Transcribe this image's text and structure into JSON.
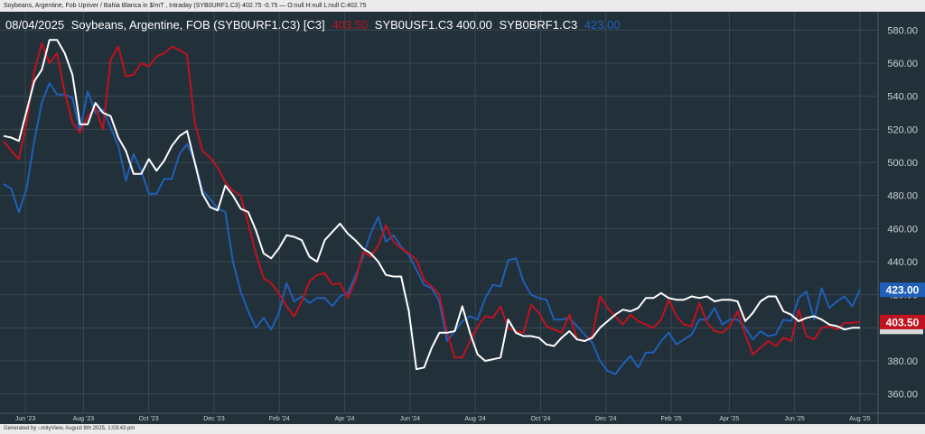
{
  "header": {
    "title": "Soybeans, Argentine, Fob Upriver / Bahia Blanca in $/mT , Intraday (SYB0URF1.C3) 402.75 -0.75 — O:null H:null L:null C:402.75"
  },
  "footer": {
    "text": "Generated by ⌂mityView, August 8th 2025, 1:03:43 pm"
  },
  "legend": {
    "date": "08/04/2025",
    "name": "Soybeans, Argentine, FOB (SYB0URF1.C3) [C3]",
    "series": [
      {
        "label": "403.50",
        "color": "#c0121f"
      },
      {
        "label": "SYB0USF1.C3 400.00",
        "color": "#ffffff"
      },
      {
        "label": "SYB0BRF1.C3",
        "color": "#ffffff"
      },
      {
        "label": "423.00",
        "color": "#1f5fb8"
      }
    ]
  },
  "chart_data": {
    "type": "line",
    "title": "",
    "xlabel": "",
    "ylabel": "",
    "ylim": [
      350,
      590
    ],
    "y_ticks": [
      360,
      380,
      400,
      420,
      440,
      460,
      480,
      500,
      520,
      540,
      560,
      580
    ],
    "y_tick_labels": [
      "360.00",
      "380.00",
      "400.00",
      "420.00",
      "440.00",
      "460.00",
      "480.00",
      "500.00",
      "520.00",
      "540.00",
      "560.00",
      "580.00"
    ],
    "x_ticks": [
      {
        "label": "Jun '23",
        "t": 3
      },
      {
        "label": "Aug '23",
        "t": 11
      },
      {
        "label": "Oct '23",
        "t": 20
      },
      {
        "label": "Dec '23",
        "t": 29
      },
      {
        "label": "Feb '24",
        "t": 38
      },
      {
        "label": "Apr '24",
        "t": 47
      },
      {
        "label": "Jun '24",
        "t": 56
      },
      {
        "label": "Aug '24",
        "t": 65
      },
      {
        "label": "Oct '24",
        "t": 74
      },
      {
        "label": "Dec '24",
        "t": 83
      },
      {
        "label": "Feb '25",
        "t": 92
      },
      {
        "label": "Apr '25",
        "t": 100
      },
      {
        "label": "Jun '25",
        "t": 109
      },
      {
        "label": "Aug '25",
        "t": 118
      }
    ],
    "t_range": [
      0,
      120
    ],
    "series": [
      {
        "name": "SYB0URF1.C3",
        "color": "#c0121f",
        "last_value": "403.50",
        "values": [
          513,
          507,
          502,
          524,
          555,
          572,
          560,
          566,
          542,
          524,
          518,
          528,
          533,
          520,
          562,
          570,
          552,
          553,
          560,
          558,
          564,
          566,
          570,
          568,
          565,
          524,
          507,
          503,
          497,
          488,
          483,
          480,
          463,
          445,
          430,
          427,
          421,
          413,
          407,
          416,
          428,
          432,
          433,
          426,
          427,
          418,
          428,
          446,
          443,
          450,
          462,
          452,
          448,
          445,
          441,
          429,
          425,
          420,
          397,
          382,
          382,
          392,
          401,
          407,
          406,
          413,
          400,
          398,
          397,
          414,
          409,
          401,
          399,
          397,
          408,
          393,
          392,
          395,
          419,
          412,
          407,
          402,
          408,
          404,
          402,
          400,
          405,
          417,
          407,
          402,
          401,
          415,
          403,
          398,
          397,
          401,
          410,
          396,
          384,
          388,
          392,
          389,
          394,
          392,
          411,
          395,
          393,
          400,
          401,
          399,
          403,
          403,
          403.5
        ]
      },
      {
        "name": "SYB0USF1.C3",
        "color": "#ffffff",
        "last_value": "400.00",
        "values": [
          516,
          515,
          513,
          531,
          549,
          556,
          574,
          574,
          566,
          553,
          523,
          523,
          536,
          530,
          528,
          515,
          507,
          493,
          493,
          502,
          495,
          501,
          510,
          516,
          519,
          500,
          481,
          473,
          471,
          486,
          480,
          472,
          470,
          459,
          445,
          442,
          448,
          456,
          455,
          453,
          443,
          440,
          453,
          458,
          463,
          457,
          453,
          448,
          445,
          440,
          432,
          431,
          431,
          410,
          375,
          376,
          388,
          397,
          397,
          398,
          413,
          397,
          384,
          380,
          381,
          382,
          405,
          397,
          395,
          395,
          394,
          390,
          389,
          394,
          398,
          393,
          392,
          394,
          400,
          404,
          408,
          411,
          410,
          412,
          418,
          418,
          421,
          418,
          417,
          417,
          419,
          418,
          419,
          416,
          417,
          417,
          416,
          404,
          409,
          416,
          419,
          419,
          410,
          408,
          404,
          406,
          407,
          405,
          402,
          401,
          399,
          400,
          400
        ]
      },
      {
        "name": "SYB0BRF1.C3",
        "color": "#1f5fb8",
        "last_value": "423.00",
        "values": [
          487,
          484,
          470,
          484,
          513,
          536,
          548,
          541,
          541,
          539,
          519,
          543,
          530,
          532,
          521,
          510,
          489,
          505,
          495,
          481,
          481,
          490,
          490,
          505,
          511,
          501,
          483,
          478,
          472,
          470,
          440,
          422,
          410,
          400,
          406,
          399,
          409,
          427,
          416,
          419,
          415,
          418,
          418,
          413,
          419,
          421,
          431,
          443,
          457,
          467,
          452,
          456,
          449,
          444,
          435,
          426,
          424,
          416,
          392,
          398,
          404,
          407,
          405,
          418,
          426,
          425,
          441,
          442,
          428,
          420,
          418,
          417,
          405,
          405,
          406,
          401,
          396,
          391,
          380,
          374,
          372,
          378,
          383,
          376,
          385,
          385,
          392,
          397,
          390,
          393,
          396,
          405,
          405,
          412,
          402,
          405,
          405,
          400,
          393,
          398,
          395,
          396,
          405,
          404,
          418,
          422,
          405,
          424,
          412,
          416,
          419,
          413,
          423
        ]
      }
    ],
    "grid": true,
    "legend_placement": "top-left"
  }
}
